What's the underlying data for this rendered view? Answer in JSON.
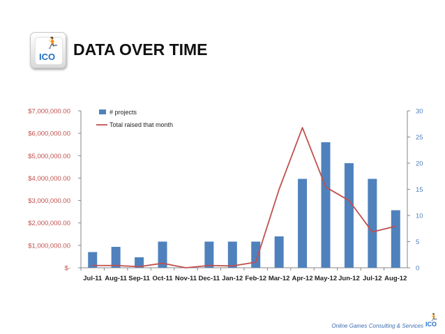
{
  "header": {
    "title": "DATA OVER TIME",
    "logo_text": "ICO"
  },
  "footer": {
    "text": "Online Games Consulting & Services",
    "logo_text": "ICO"
  },
  "colors": {
    "bars": "#4f81bd",
    "line": "#c0504d",
    "left_axis_text": "#c0504d",
    "right_axis_text": "#4f81bd"
  },
  "chart_data": {
    "type": "bar",
    "categories": [
      "Jul-11",
      "Aug-11",
      "Sep-11",
      "Oct-11",
      "Nov-11",
      "Dec-11",
      "Jan-12",
      "Feb-12",
      "Mar-12",
      "Apr-12",
      "May-12",
      "Jun-12",
      "Jul-12",
      "Aug-12"
    ],
    "series": [
      {
        "name": "# projects",
        "type": "bar",
        "axis": "right",
        "values": [
          3,
          4,
          2,
          5,
          0,
          5,
          5,
          5,
          6,
          17,
          24,
          20,
          17,
          11
        ]
      },
      {
        "name": "Total raised that month",
        "type": "line",
        "axis": "left",
        "values": [
          100000,
          100000,
          50000,
          200000,
          0,
          100000,
          80000,
          250000,
          3500000,
          6250000,
          3600000,
          3000000,
          1600000,
          1850000
        ]
      }
    ],
    "left_axis": {
      "min": 0,
      "max": 7000000,
      "ticks": [
        "$-",
        "$1,000,000.00",
        "$2,000,000.00",
        "$3,000,000.00",
        "$4,000,000.00",
        "$5,000,000.00",
        "$6,000,000.00",
        "$7,000,000.00"
      ]
    },
    "right_axis": {
      "min": 0,
      "max": 30,
      "ticks": [
        "0",
        "5",
        "10",
        "15",
        "20",
        "25",
        "30"
      ]
    },
    "legend": {
      "placement": "top-left",
      "entries": [
        "# projects",
        "Total raised that month"
      ]
    },
    "grid": false
  }
}
